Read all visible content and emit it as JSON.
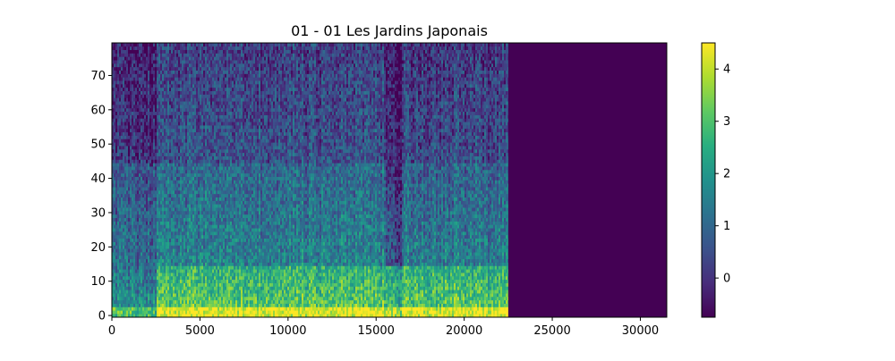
{
  "chart_data": {
    "type": "heatmap",
    "title": "01 - 01 Les Jardins Japonais",
    "xlabel": "",
    "ylabel": "",
    "xlim": [
      0,
      31500
    ],
    "ylim": [
      -0.5,
      79.5
    ],
    "x_ticks": [
      0,
      5000,
      10000,
      15000,
      20000,
      25000,
      30000
    ],
    "x_tick_labels": [
      "0",
      "5000",
      "10000",
      "15000",
      "20000",
      "25000",
      "30000"
    ],
    "y_ticks": [
      0,
      10,
      20,
      30,
      40,
      50,
      60,
      70
    ],
    "y_tick_labels": [
      "0",
      "10",
      "20",
      "30",
      "40",
      "50",
      "60",
      "70"
    ],
    "n_rows": 80,
    "signal_end_x": 22500,
    "colormap": "viridis",
    "colorbar": {
      "vmin": -0.75,
      "vmax": 4.5,
      "ticks": [
        0,
        1,
        2,
        3,
        4
      ],
      "tick_labels": [
        "0",
        "1",
        "2",
        "3",
        "4"
      ]
    },
    "segments": [
      {
        "x_start": 0,
        "x_end": 2500,
        "low_rows_level": 2.6,
        "mid_rows_level": 1.1,
        "high_rows_level": 0.0
      },
      {
        "x_start": 2500,
        "x_end": 15500,
        "low_rows_level": 4.0,
        "mid_rows_level": 1.6,
        "high_rows_level": 0.6
      },
      {
        "x_start": 15500,
        "x_end": 16400,
        "low_rows_level": 3.6,
        "mid_rows_level": 0.5,
        "high_rows_level": -0.2
      },
      {
        "x_start": 16400,
        "x_end": 22500,
        "low_rows_level": 4.0,
        "mid_rows_level": 1.5,
        "high_rows_level": 0.5
      },
      {
        "x_start": 22500,
        "x_end": 31500,
        "low_rows_level": -0.75,
        "mid_rows_level": -0.75,
        "high_rows_level": -0.75
      }
    ]
  }
}
